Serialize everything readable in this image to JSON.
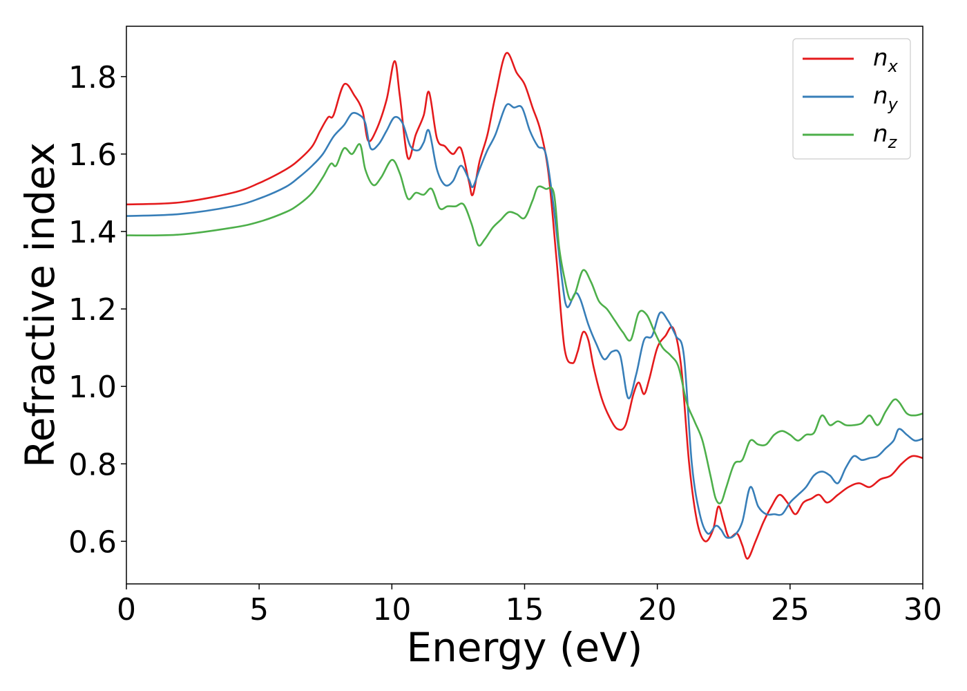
{
  "chart_data": {
    "type": "line",
    "xlabel": "Energy (eV)",
    "ylabel": "Refractive index",
    "xlim": [
      0,
      30
    ],
    "ylim": [
      0.49,
      1.93
    ],
    "xticks": [
      0,
      5,
      10,
      15,
      20,
      25,
      30
    ],
    "xtick_labels": [
      "0",
      "5",
      "10",
      "15",
      "20",
      "25",
      "30"
    ],
    "yticks": [
      0.6,
      0.8,
      1.0,
      1.2,
      1.4,
      1.6,
      1.8
    ],
    "ytick_labels": [
      "0.6",
      "0.8",
      "1.0",
      "1.2",
      "1.4",
      "1.6",
      "1.8"
    ],
    "grid": false,
    "legend_position": "top-right",
    "series": [
      {
        "name": "n",
        "subscript": "x",
        "color": "#e41a1c",
        "x": [
          0,
          2,
          4,
          5,
          6,
          6.5,
          7,
          7.3,
          7.6,
          7.8,
          8.2,
          8.6,
          8.9,
          9.1,
          9.4,
          9.8,
          10.1,
          10.3,
          10.6,
          10.9,
          11.2,
          11.4,
          11.7,
          12.0,
          12.3,
          12.6,
          12.9,
          13.05,
          13.3,
          13.6,
          13.9,
          14.3,
          14.7,
          15.0,
          15.3,
          15.6,
          15.9,
          16.2,
          16.5,
          16.8,
          17.0,
          17.2,
          17.4,
          17.6,
          17.9,
          18.2,
          18.5,
          18.8,
          19.1,
          19.3,
          19.5,
          19.7,
          20.0,
          20.3,
          20.6,
          20.9,
          21.2,
          21.5,
          21.8,
          22.1,
          22.3,
          22.5,
          22.7,
          23.0,
          23.2,
          23.4,
          23.7,
          24.0,
          24.3,
          24.6,
          24.9,
          25.2,
          25.5,
          25.8,
          26.1,
          26.4,
          26.8,
          27.2,
          27.6,
          28.0,
          28.4,
          28.8,
          29.2,
          29.6,
          30.0
        ],
        "values": [
          1.47,
          1.475,
          1.5,
          1.525,
          1.56,
          1.585,
          1.62,
          1.66,
          1.695,
          1.7,
          1.78,
          1.75,
          1.71,
          1.635,
          1.66,
          1.74,
          1.84,
          1.75,
          1.59,
          1.65,
          1.7,
          1.76,
          1.64,
          1.62,
          1.6,
          1.615,
          1.53,
          1.495,
          1.58,
          1.65,
          1.75,
          1.86,
          1.81,
          1.78,
          1.72,
          1.66,
          1.55,
          1.33,
          1.1,
          1.06,
          1.09,
          1.14,
          1.12,
          1.05,
          0.97,
          0.92,
          0.89,
          0.9,
          0.98,
          1.01,
          0.98,
          1.02,
          1.1,
          1.13,
          1.15,
          1.05,
          0.8,
          0.65,
          0.6,
          0.63,
          0.69,
          0.65,
          0.61,
          0.62,
          0.59,
          0.555,
          0.6,
          0.65,
          0.69,
          0.72,
          0.7,
          0.67,
          0.7,
          0.71,
          0.72,
          0.7,
          0.72,
          0.74,
          0.75,
          0.74,
          0.76,
          0.77,
          0.8,
          0.82,
          0.815
        ]
      },
      {
        "name": "n",
        "subscript": "y",
        "color": "#377eb8",
        "x": [
          0,
          2,
          4,
          5,
          6,
          6.5,
          7,
          7.4,
          7.8,
          8.2,
          8.5,
          8.8,
          9.0,
          9.2,
          9.5,
          9.8,
          10.1,
          10.4,
          10.7,
          11.0,
          11.2,
          11.4,
          11.7,
          12.0,
          12.3,
          12.6,
          12.9,
          13.05,
          13.3,
          13.6,
          13.9,
          14.3,
          14.6,
          14.9,
          15.2,
          15.5,
          15.8,
          16.1,
          16.4,
          16.6,
          16.9,
          17.1,
          17.4,
          17.7,
          18.0,
          18.3,
          18.6,
          18.9,
          19.2,
          19.5,
          19.8,
          20.1,
          20.4,
          20.7,
          21.0,
          21.3,
          21.6,
          21.9,
          22.2,
          22.4,
          22.6,
          22.9,
          23.2,
          23.5,
          23.8,
          24.1,
          24.4,
          24.7,
          25.0,
          25.3,
          25.6,
          25.9,
          26.2,
          26.5,
          26.8,
          27.1,
          27.4,
          27.7,
          28.0,
          28.3,
          28.6,
          28.9,
          29.1,
          29.4,
          29.7,
          30.0
        ],
        "values": [
          1.44,
          1.445,
          1.465,
          1.485,
          1.515,
          1.54,
          1.57,
          1.6,
          1.645,
          1.675,
          1.705,
          1.7,
          1.68,
          1.615,
          1.625,
          1.66,
          1.695,
          1.68,
          1.62,
          1.61,
          1.63,
          1.66,
          1.56,
          1.52,
          1.53,
          1.57,
          1.535,
          1.515,
          1.56,
          1.61,
          1.65,
          1.725,
          1.72,
          1.72,
          1.66,
          1.62,
          1.6,
          1.46,
          1.28,
          1.205,
          1.24,
          1.225,
          1.16,
          1.11,
          1.07,
          1.09,
          1.08,
          0.97,
          1.03,
          1.12,
          1.13,
          1.19,
          1.17,
          1.13,
          1.08,
          0.8,
          0.67,
          0.62,
          0.64,
          0.63,
          0.61,
          0.615,
          0.65,
          0.74,
          0.69,
          0.67,
          0.67,
          0.67,
          0.7,
          0.72,
          0.74,
          0.77,
          0.78,
          0.77,
          0.75,
          0.79,
          0.82,
          0.81,
          0.815,
          0.82,
          0.84,
          0.86,
          0.89,
          0.875,
          0.86,
          0.865
        ]
      },
      {
        "name": "n",
        "subscript": "z",
        "color": "#4daf4a",
        "x": [
          0,
          2,
          4,
          5,
          6,
          6.5,
          7,
          7.4,
          7.7,
          7.9,
          8.2,
          8.5,
          8.8,
          9.0,
          9.3,
          9.6,
          10.0,
          10.3,
          10.6,
          10.9,
          11.2,
          11.5,
          11.8,
          12.1,
          12.4,
          12.7,
          13.0,
          13.25,
          13.5,
          13.8,
          14.1,
          14.4,
          14.7,
          15.0,
          15.3,
          15.5,
          15.8,
          16.1,
          16.3,
          16.5,
          16.7,
          16.9,
          17.2,
          17.5,
          17.8,
          18.1,
          18.4,
          18.7,
          19.0,
          19.3,
          19.6,
          19.9,
          20.2,
          20.5,
          20.8,
          21.1,
          21.4,
          21.7,
          22.0,
          22.2,
          22.4,
          22.6,
          22.9,
          23.2,
          23.5,
          23.8,
          24.1,
          24.4,
          24.7,
          25.0,
          25.3,
          25.6,
          25.9,
          26.2,
          26.5,
          26.8,
          27.1,
          27.4,
          27.7,
          28.0,
          28.3,
          28.6,
          28.9,
          29.1,
          29.4,
          29.7,
          30.0
        ],
        "values": [
          1.39,
          1.392,
          1.41,
          1.425,
          1.45,
          1.47,
          1.5,
          1.54,
          1.575,
          1.57,
          1.615,
          1.6,
          1.625,
          1.56,
          1.52,
          1.54,
          1.585,
          1.55,
          1.485,
          1.5,
          1.495,
          1.51,
          1.46,
          1.465,
          1.465,
          1.47,
          1.42,
          1.365,
          1.38,
          1.41,
          1.43,
          1.45,
          1.445,
          1.435,
          1.48,
          1.515,
          1.51,
          1.5,
          1.36,
          1.28,
          1.225,
          1.24,
          1.3,
          1.27,
          1.22,
          1.2,
          1.17,
          1.14,
          1.12,
          1.19,
          1.185,
          1.14,
          1.1,
          1.08,
          1.05,
          0.96,
          0.91,
          0.86,
          0.77,
          0.71,
          0.7,
          0.74,
          0.8,
          0.81,
          0.86,
          0.85,
          0.85,
          0.875,
          0.885,
          0.875,
          0.86,
          0.875,
          0.88,
          0.925,
          0.9,
          0.91,
          0.9,
          0.9,
          0.905,
          0.925,
          0.9,
          0.935,
          0.965,
          0.96,
          0.93,
          0.925,
          0.93
        ]
      }
    ]
  }
}
